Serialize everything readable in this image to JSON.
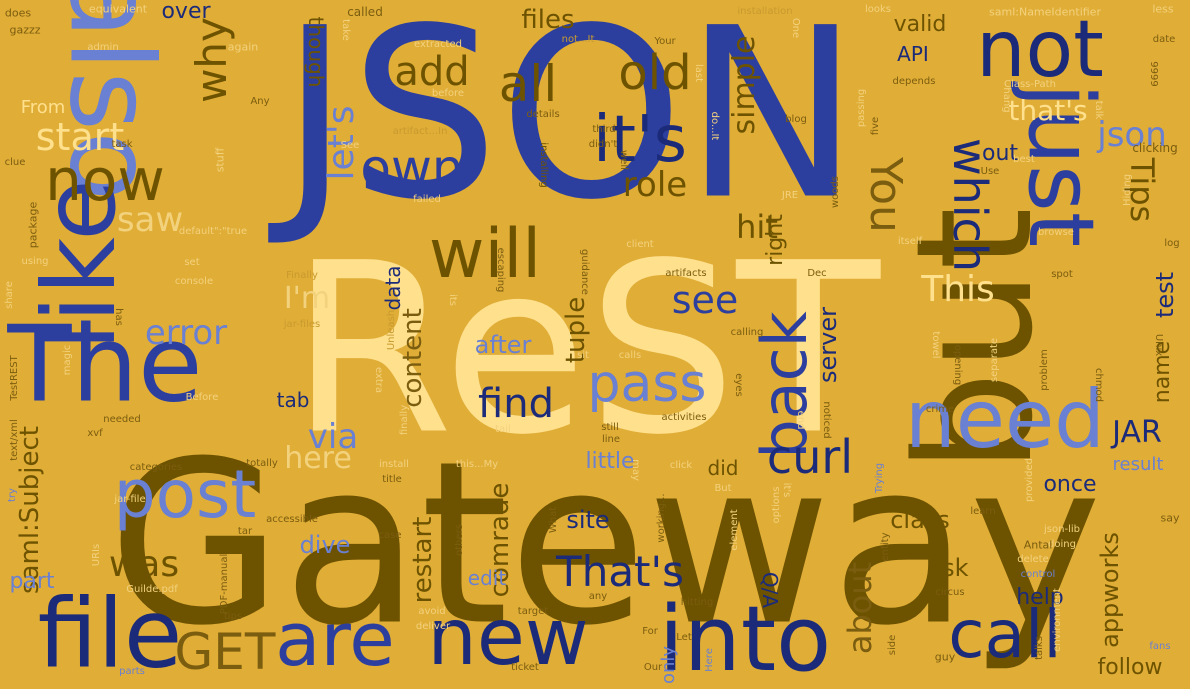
{
  "background_color": "#e0ad37",
  "palette": {
    "navy": "#1b2b7a",
    "blue": "#2d3f9e",
    "periwinkle": "#6a80d2",
    "olive": "#6d5300",
    "brown": "#7b5d0f",
    "cream": "#ffe08d",
    "light": "#f3d27d",
    "tan": "#b58a2a"
  },
  "words": [
    {
      "text": "Gateway"
    },
    {
      "text": "JSON"
    },
    {
      "text": "ReST"
    },
    {
      "text": "but"
    },
    {
      "text": "also"
    },
    {
      "text": "like"
    },
    {
      "text": "The"
    },
    {
      "text": "file"
    },
    {
      "text": "into"
    },
    {
      "text": "new"
    },
    {
      "text": "are"
    },
    {
      "text": "just"
    },
    {
      "text": "not"
    },
    {
      "text": "need"
    },
    {
      "text": "post"
    },
    {
      "text": "call"
    },
    {
      "text": "will"
    },
    {
      "text": "back"
    },
    {
      "text": "it's"
    },
    {
      "text": "now"
    },
    {
      "text": "GET"
    },
    {
      "text": "pass"
    },
    {
      "text": "own"
    },
    {
      "text": "all"
    },
    {
      "text": "which"
    },
    {
      "text": "old"
    },
    {
      "text": "curl"
    },
    {
      "text": "That's"
    },
    {
      "text": "why"
    },
    {
      "text": "add"
    },
    {
      "text": "find"
    },
    {
      "text": "see"
    },
    {
      "text": "start"
    },
    {
      "text": "You"
    },
    {
      "text": "let's"
    },
    {
      "text": "This"
    },
    {
      "text": "was"
    },
    {
      "text": "json"
    },
    {
      "text": "error"
    },
    {
      "text": "via"
    },
    {
      "text": "Tips"
    },
    {
      "text": "hit"
    },
    {
      "text": "saw"
    },
    {
      "text": "role"
    },
    {
      "text": "here"
    },
    {
      "text": "I'm"
    },
    {
      "text": "JAR"
    },
    {
      "text": "about"
    },
    {
      "text": "simple"
    },
    {
      "text": "that's"
    },
    {
      "text": "files"
    },
    {
      "text": "content"
    },
    {
      "text": "tuple"
    },
    {
      "text": "comrade"
    },
    {
      "text": "saml:Subject"
    },
    {
      "text": "restart"
    },
    {
      "text": "appworks"
    },
    {
      "text": "server"
    },
    {
      "text": "right"
    },
    {
      "text": "test"
    },
    {
      "text": "name"
    },
    {
      "text": "after"
    },
    {
      "text": "little"
    },
    {
      "text": "site"
    },
    {
      "text": "class"
    },
    {
      "text": "dive"
    },
    {
      "text": "ask"
    },
    {
      "text": "help"
    },
    {
      "text": "follow"
    },
    {
      "text": "once"
    },
    {
      "text": "result"
    },
    {
      "text": "edit"
    },
    {
      "text": "part"
    },
    {
      "text": "over"
    },
    {
      "text": "tab"
    },
    {
      "text": "valid"
    },
    {
      "text": "API"
    },
    {
      "text": "out"
    },
    {
      "text": "data"
    },
    {
      "text": "did"
    },
    {
      "text": "Q/A"
    },
    {
      "text": "only"
    },
    {
      "text": "From"
    },
    {
      "text": "though"
    },
    {
      "text": "equivalent"
    },
    {
      "text": "called"
    },
    {
      "text": "saml:NameIdentifier"
    },
    {
      "text": "installation"
    },
    {
      "text": "less"
    },
    {
      "text": "gazzz"
    },
    {
      "text": "does"
    },
    {
      "text": "looks"
    },
    {
      "text": "date"
    },
    {
      "text": "again"
    },
    {
      "text": "extracted"
    },
    {
      "text": "admin"
    },
    {
      "text": "not...It"
    },
    {
      "text": "Class-Path"
    },
    {
      "text": "depends"
    },
    {
      "text": "blog"
    },
    {
      "text": "Any"
    },
    {
      "text": "details"
    },
    {
      "text": "task"
    },
    {
      "text": "artifact...In"
    },
    {
      "text": "See"
    },
    {
      "text": "stuff"
    },
    {
      "text": "clue"
    },
    {
      "text": "package"
    },
    {
      "text": "failed"
    },
    {
      "text": "third"
    },
    {
      "text": "didn't"
    },
    {
      "text": "clicking"
    },
    {
      "text": "default\":\"true"
    },
    {
      "text": "client"
    },
    {
      "text": "itself"
    },
    {
      "text": "browse"
    },
    {
      "text": "log"
    },
    {
      "text": "using"
    },
    {
      "text": "set"
    },
    {
      "text": "console"
    },
    {
      "text": "Finally"
    },
    {
      "text": "artifacts"
    },
    {
      "text": "Dec"
    },
    {
      "text": "spot"
    },
    {
      "text": "share"
    },
    {
      "text": "jar-files"
    },
    {
      "text": "calling"
    },
    {
      "text": "magic"
    },
    {
      "text": "needed"
    },
    {
      "text": "Unleash"
    },
    {
      "text": "sit"
    },
    {
      "text": "calls"
    },
    {
      "text": "activities"
    },
    {
      "text": "problem"
    },
    {
      "text": "separate"
    },
    {
      "text": "Before"
    },
    {
      "text": "TestREST"
    },
    {
      "text": "xvf"
    },
    {
      "text": "finally"
    },
    {
      "text": "tail"
    },
    {
      "text": "still"
    },
    {
      "text": "line"
    },
    {
      "text": "crime"
    },
    {
      "text": "text/xml"
    },
    {
      "text": "totally"
    },
    {
      "text": "categories"
    },
    {
      "text": "install"
    },
    {
      "text": "this...My"
    },
    {
      "text": "title"
    },
    {
      "text": "click"
    },
    {
      "text": "provided"
    },
    {
      "text": "jar-file"
    },
    {
      "text": "tar"
    },
    {
      "text": "accessible"
    },
    {
      "text": "working..."
    },
    {
      "text": "But"
    },
    {
      "text": "options"
    },
    {
      "text": "element"
    },
    {
      "text": "learn"
    },
    {
      "text": "json-lib"
    },
    {
      "text": "doing"
    },
    {
      "text": "say"
    },
    {
      "text": "URIs"
    },
    {
      "text": "try"
    },
    {
      "text": "Guilde.pdf"
    },
    {
      "text": "PDF-manual"
    },
    {
      "text": "case"
    },
    {
      "text": "avoid"
    },
    {
      "text": "deliver"
    },
    {
      "text": "What"
    },
    {
      "text": "others"
    },
    {
      "text": "any"
    },
    {
      "text": "tips"
    },
    {
      "text": "entity"
    },
    {
      "text": "delete"
    },
    {
      "text": "control"
    },
    {
      "text": "circus"
    },
    {
      "text": "Antal"
    },
    {
      "text": "environment"
    },
    {
      "text": "target"
    },
    {
      "text": "For"
    },
    {
      "text": "Our"
    },
    {
      "text": "ticket"
    },
    {
      "text": "Let"
    },
    {
      "text": "hitting"
    },
    {
      "text": "Here"
    },
    {
      "text": "talks"
    },
    {
      "text": "side"
    },
    {
      "text": "guy"
    },
    {
      "text": "fans"
    },
    {
      "text": "parts"
    },
    {
      "text": "Trying"
    },
    {
      "text": "Your"
    },
    {
      "text": "Hiding"
    },
    {
      "text": "best"
    },
    {
      "text": "Use"
    },
    {
      "text": "passing"
    },
    {
      "text": "five"
    },
    {
      "text": "woods"
    },
    {
      "text": "JRE"
    },
    {
      "text": "escaping"
    },
    {
      "text": "installing"
    },
    {
      "text": "guidance"
    },
    {
      "text": "towel"
    },
    {
      "text": "opening"
    },
    {
      "text": "noticed"
    },
    {
      "text": "end"
    },
    {
      "text": "chmod"
    },
    {
      "text": "Unix"
    },
    {
      "text": "eyes"
    },
    {
      "text": "extra"
    },
    {
      "text": "has"
    },
    {
      "text": "well"
    },
    {
      "text": "do...It"
    },
    {
      "text": "before"
    },
    {
      "text": "take"
    },
    {
      "text": "hang"
    },
    {
      "text": "talk"
    },
    {
      "text": "9999"
    },
    {
      "text": "One"
    },
    {
      "text": "last"
    },
    {
      "text": "its"
    },
    {
      "text": "it's"
    },
    {
      "text": "may"
    }
  ]
}
